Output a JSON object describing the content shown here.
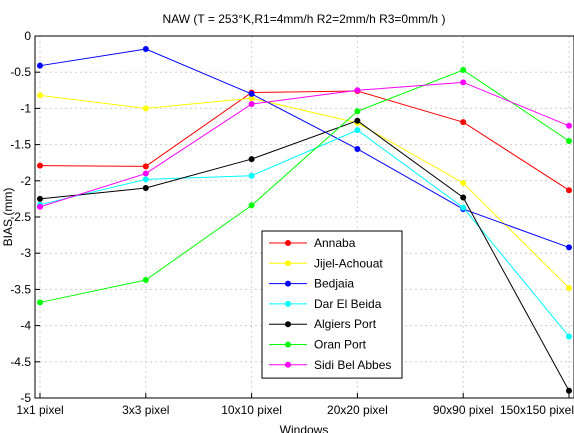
{
  "chart_data": {
    "type": "line",
    "title": "NAW (T = 253°K,R1=4mm/h  R2=2mm/h  R3=0mm/h )",
    "xlabel": "Windows",
    "ylabel": "BIAS (mm)",
    "categories": [
      "1x1 pixel",
      "3x3 pixel",
      "10x10 pixel",
      "20x20 pixel",
      "90x90 pixel",
      "150x150 pixel"
    ],
    "ylim": [
      -5,
      0
    ],
    "yticks": [
      0,
      -0.5,
      -1,
      -1.5,
      -2,
      -2.5,
      -3,
      -3.5,
      -4,
      -4.5,
      -5
    ],
    "ytick_labels": [
      "0",
      "-0.5",
      "-1",
      "-1.5",
      "-2",
      "-2.5",
      "-3",
      "-3.5",
      "-4",
      "-4.5",
      "-5"
    ],
    "grid": true,
    "legend_position": "bottom-center",
    "series": [
      {
        "name": "Annaba",
        "color": "#ff0000",
        "values": [
          -1.79,
          -1.8,
          -0.78,
          -0.76,
          -1.19,
          -2.13
        ]
      },
      {
        "name": "Jijel-Achouat",
        "color": "#ffff00",
        "values": [
          -0.82,
          -1.0,
          -0.86,
          -1.2,
          -2.03,
          -3.48
        ]
      },
      {
        "name": "Bedjaia",
        "color": "#0000ff",
        "values": [
          -0.41,
          -0.18,
          -0.8,
          -1.56,
          -2.39,
          -2.92
        ]
      },
      {
        "name": "Dar El Beida",
        "color": "#00ffff",
        "values": [
          -2.33,
          -1.98,
          -1.93,
          -1.3,
          -2.37,
          -4.15
        ]
      },
      {
        "name": "Algiers Port",
        "color": "#000000",
        "values": [
          -2.25,
          -2.1,
          -1.7,
          -1.17,
          -2.23,
          -4.9
        ]
      },
      {
        "name": "Oran Port",
        "color": "#00ff00",
        "values": [
          -3.68,
          -3.37,
          -2.34,
          -1.04,
          -0.47,
          -1.45
        ]
      },
      {
        "name": "Sidi Bel Abbes",
        "color": "#ff00ff",
        "values": [
          -2.36,
          -1.9,
          -0.94,
          -0.75,
          -0.64,
          -1.24
        ]
      }
    ]
  }
}
